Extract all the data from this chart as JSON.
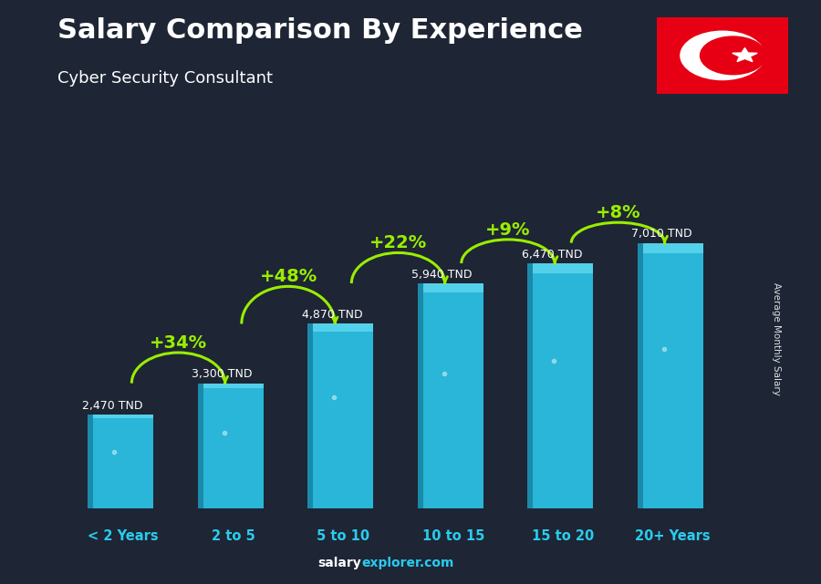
{
  "title": "Salary Comparison By Experience",
  "subtitle": "Cyber Security Consultant",
  "categories": [
    "< 2 Years",
    "2 to 5",
    "5 to 10",
    "10 to 15",
    "15 to 20",
    "20+ Years"
  ],
  "values": [
    2470,
    3300,
    4870,
    5940,
    6470,
    7010
  ],
  "salary_labels": [
    "2,470 TND",
    "3,300 TND",
    "4,870 TND",
    "5,940 TND",
    "6,470 TND",
    "7,010 TND"
  ],
  "pct_labels": [
    "+34%",
    "+48%",
    "+22%",
    "+9%",
    "+8%"
  ],
  "bar_color": "#29b6d8",
  "bar_left_color": "#1a8aaa",
  "bar_top_color": "#5ed8f0",
  "background_dark": "#1e2535",
  "text_white": "#ffffff",
  "text_green": "#99ee00",
  "cat_color": "#29ccee",
  "ylabel": "Average Monthly Salary",
  "ylim": [
    0,
    8800
  ],
  "bar_width": 0.55
}
